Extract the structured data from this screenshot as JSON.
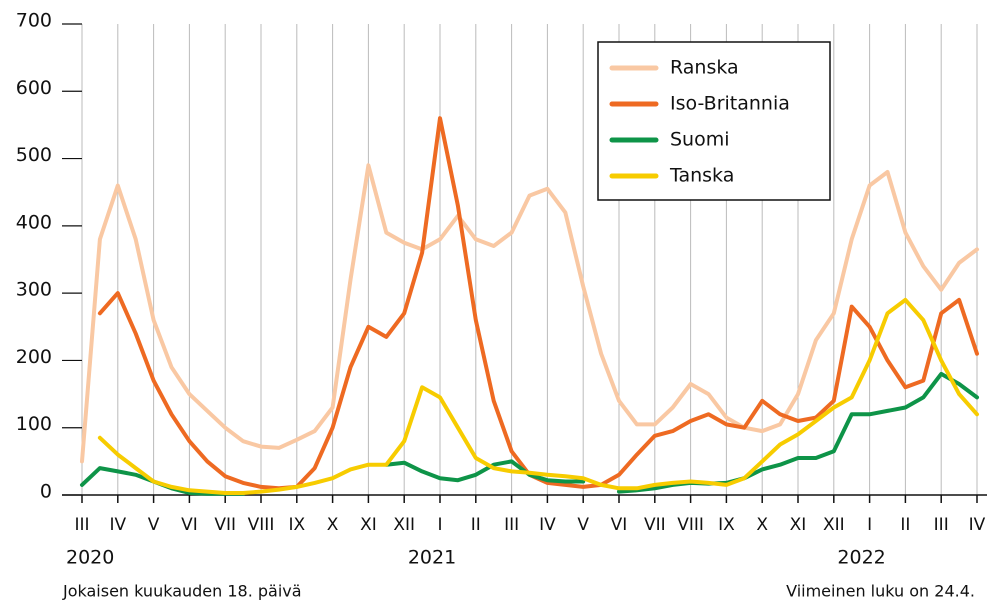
{
  "chart_data": {
    "type": "line",
    "categories": [
      "III",
      null,
      "IV",
      null,
      "V",
      null,
      "VI",
      null,
      "VII",
      null,
      "VIII",
      null,
      "IX",
      null,
      "X",
      null,
      "XI",
      null,
      "XII",
      null,
      "I",
      null,
      "II",
      null,
      "III",
      null,
      "IV",
      null,
      "V",
      null,
      "VI",
      null,
      "VII",
      null,
      "VIII",
      null,
      "IX",
      null,
      "X",
      null,
      "XI",
      null,
      "XII",
      null,
      "I",
      null,
      "II",
      null,
      "III",
      null,
      "IV"
    ],
    "years": [
      "2020",
      "2021",
      "2022"
    ],
    "ylim": [
      0,
      700
    ],
    "yticks": [
      0,
      100,
      200,
      300,
      400,
      500,
      600,
      700
    ],
    "grid": true,
    "legend": "top-right",
    "series": [
      {
        "name": "Ranska",
        "color": "#f9c8a3",
        "values": [
          50,
          380,
          460,
          380,
          260,
          190,
          150,
          125,
          100,
          80,
          72,
          70,
          82,
          95,
          130,
          320,
          490,
          390,
          375,
          365,
          380,
          415,
          380,
          370,
          390,
          445,
          455,
          420,
          310,
          210,
          140,
          105,
          105,
          130,
          165,
          150,
          115,
          100,
          95,
          105,
          150,
          230,
          270,
          380,
          460,
          480,
          390,
          340,
          305,
          345,
          365
        ]
      },
      {
        "name": "Iso-Britannia",
        "color": "#ee6a22",
        "values": [
          null,
          270,
          300,
          240,
          170,
          120,
          80,
          50,
          28,
          18,
          12,
          10,
          12,
          40,
          100,
          190,
          250,
          235,
          270,
          360,
          560,
          430,
          260,
          140,
          65,
          30,
          18,
          15,
          12,
          15,
          30,
          60,
          88,
          95,
          110,
          120,
          105,
          100,
          140,
          120,
          110,
          115,
          140,
          280,
          250,
          200,
          160,
          170,
          270,
          290,
          210
        ]
      },
      {
        "name": "Suomi",
        "color": "#0e9448",
        "values": [
          15,
          40,
          35,
          30,
          20,
          10,
          3,
          2,
          2,
          2,
          null,
          null,
          null,
          null,
          null,
          null,
          null,
          45,
          48,
          35,
          25,
          22,
          30,
          45,
          50,
          30,
          22,
          20,
          20,
          null,
          5,
          7,
          10,
          15,
          18,
          17,
          18,
          25,
          38,
          45,
          55,
          55,
          65,
          120,
          120,
          125,
          130,
          145,
          180,
          165,
          145
        ]
      },
      {
        "name": "Tanska",
        "color": "#f7cc00",
        "values": [
          null,
          85,
          60,
          40,
          20,
          12,
          7,
          5,
          3,
          3,
          5,
          8,
          12,
          18,
          25,
          38,
          45,
          45,
          80,
          160,
          145,
          100,
          55,
          40,
          35,
          33,
          30,
          28,
          25,
          15,
          10,
          10,
          15,
          18,
          20,
          18,
          15,
          25,
          50,
          75,
          90,
          110,
          130,
          145,
          200,
          270,
          290,
          260,
          200,
          150,
          120
        ]
      }
    ],
    "footnote_left": "Jokaisen kuukauden 18. päivä",
    "footnote_right": "Viimeinen luku on 24.4."
  }
}
